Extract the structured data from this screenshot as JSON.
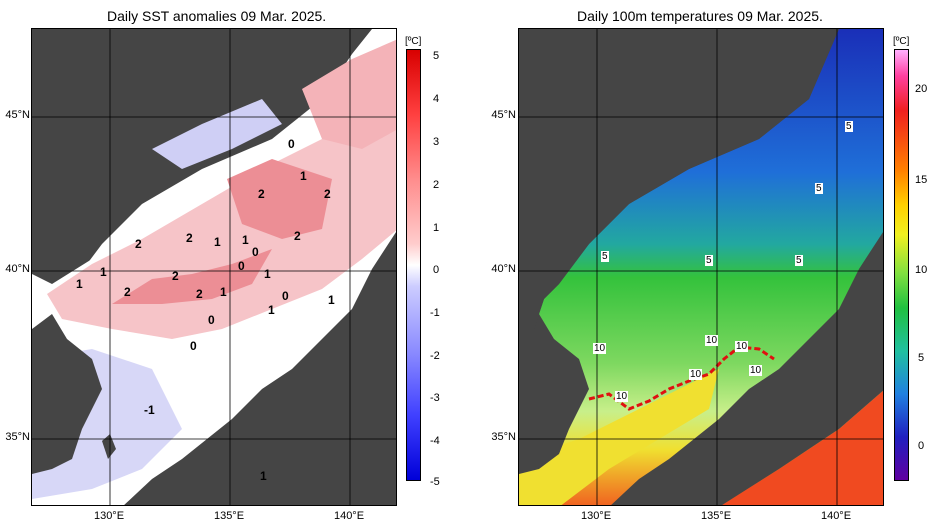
{
  "left_panel": {
    "title": "Daily SST anomalies 09 Mar. 2025.",
    "unit": "[ºC]",
    "lat_labels": [
      "45°N",
      "40°N",
      "35°N"
    ],
    "lon_labels": [
      "130°E",
      "135°E",
      "140°E"
    ],
    "colorbar_ticks": [
      "5",
      "4",
      "3",
      "2",
      "1",
      "0",
      "-1",
      "-2",
      "-3",
      "-4",
      "-5"
    ],
    "contour_labels": [
      "0",
      "1",
      "2",
      "2",
      "2",
      "2",
      "1",
      "1",
      "0",
      "1",
      "2",
      "2",
      "1",
      "0",
      "1",
      "1",
      "2",
      "2",
      "1",
      "0",
      "1",
      "0",
      "0",
      "-1",
      "1"
    ],
    "colors": {
      "land": "#454545",
      "warm": "#e8546a",
      "cool": "#8c8cf0",
      "neutral": "#ffffff"
    }
  },
  "right_panel": {
    "title": "Daily 100m temperatures 09 Mar. 2025.",
    "unit": "[ºC]",
    "lat_labels": [
      "45°N",
      "40°N",
      "35°N"
    ],
    "lon_labels": [
      "130°E",
      "135°E",
      "140°E"
    ],
    "colorbar_ticks": [
      "20",
      "15",
      "10",
      "5",
      "0"
    ],
    "contour_labels": [
      "5",
      "5",
      "5",
      "5",
      "5",
      "10",
      "10",
      "10",
      "10",
      "10",
      "10"
    ],
    "colors": {
      "land": "#454545",
      "cold": "#1e3cc8",
      "mid": "#34c23c",
      "warm": "#f0e030",
      "hot": "#f04020",
      "front_line": "#e01010"
    }
  }
}
